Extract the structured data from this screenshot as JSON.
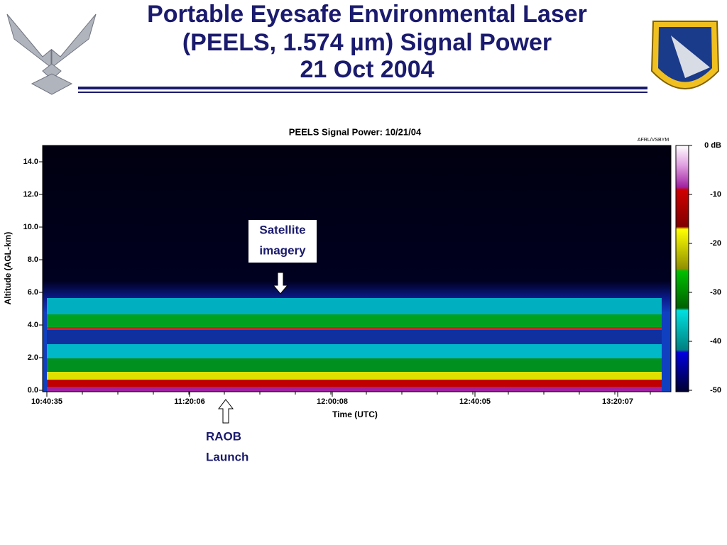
{
  "header": {
    "title": [
      "Portable Eyesafe Environmental Laser",
      "(PEELS, 1.574 µm) Signal Power",
      "21 Oct 2004"
    ]
  },
  "plot": {
    "title": "PEELS Signal Power: 10/21/04",
    "credit": "AFRL/VSBYM",
    "y_label": "Altitude (AGL-km)",
    "y_ticks": [
      "0.0",
      "2.0",
      "4.0",
      "6.0",
      "8.0",
      "10.0",
      "12.0",
      "14.0"
    ],
    "x_label": "Time (UTC)",
    "x_ticks": [
      "10:40:35",
      "11:20:06",
      "12:00:08",
      "12:40:05",
      "13:20:07"
    ],
    "colorbar_ticks": [
      "0 dB",
      "-10",
      "-20",
      "-30",
      "-40",
      "-50"
    ]
  },
  "annotations": {
    "satellite": [
      "Satellite",
      "imagery"
    ],
    "raob": [
      "RAOB",
      "Launch"
    ]
  }
}
